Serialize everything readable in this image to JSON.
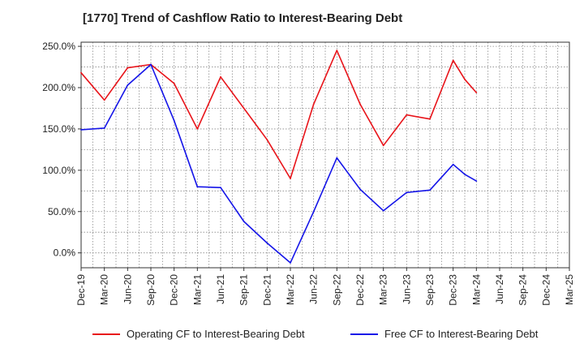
{
  "chart_data": {
    "type": "line",
    "title": "[1770]  Trend of Cashflow Ratio to Interest-Bearing Debt",
    "xlabel": "",
    "ylabel": "",
    "categories": [
      "Dec-19",
      "Mar-20",
      "Jun-20",
      "Sep-20",
      "Dec-20",
      "Mar-21",
      "Jun-21",
      "Sep-21",
      "Dec-21",
      "Mar-22",
      "Jun-22",
      "Sep-22",
      "Dec-22",
      "Mar-23",
      "Jun-23",
      "Sep-23",
      "Dec-23",
      "Mar-24",
      "Jun-24",
      "Sep-24",
      "Dec-24",
      "Mar-25"
    ],
    "x": [
      0,
      0.5,
      1,
      1.5,
      2,
      2.5,
      3,
      3.5,
      4,
      4.5,
      5,
      5.5,
      6,
      6.5,
      7,
      7.5,
      8,
      8.5,
      9,
      9.5,
      10,
      10.5,
      11,
      11.5,
      12,
      12.5,
      13,
      13.5,
      14,
      14.5,
      15,
      15.5,
      16,
      16.5,
      17,
      17.5,
      18,
      18.5,
      19,
      19.5,
      20,
      20.5,
      21
    ],
    "ylim": [
      -18,
      255
    ],
    "yticks": [
      0,
      50,
      100,
      150,
      200,
      250
    ],
    "ytick_labels": [
      "0.0%",
      "50.0%",
      "100.0%",
      "150.0%",
      "200.0%",
      "250.0%"
    ],
    "grid": true,
    "legend_position": "bottom",
    "series": [
      {
        "name": "Operating CF to Interest-Bearing Debt",
        "color": "#e8141a",
        "points": [
          [
            0,
            218
          ],
          [
            1,
            185
          ],
          [
            2,
            224
          ],
          [
            3,
            228
          ],
          [
            4,
            205
          ],
          [
            5,
            150
          ],
          [
            6,
            213
          ],
          [
            7,
            175
          ],
          [
            8,
            137
          ],
          [
            9,
            90
          ],
          [
            10,
            180
          ],
          [
            11,
            245
          ],
          [
            12,
            180
          ],
          [
            13,
            130
          ],
          [
            14,
            167
          ],
          [
            15,
            162
          ],
          [
            16,
            233
          ],
          [
            16.5,
            210
          ],
          [
            17,
            194
          ]
        ]
      },
      {
        "name": "Free CF to Interest-Bearing Debt",
        "color": "#1515e8",
        "points": [
          [
            0,
            149
          ],
          [
            1,
            151
          ],
          [
            2,
            203
          ],
          [
            3,
            228
          ],
          [
            4,
            160
          ],
          [
            5,
            80
          ],
          [
            6,
            79
          ],
          [
            7,
            38
          ],
          [
            8,
            12
          ],
          [
            9,
            -12
          ],
          [
            10,
            50
          ],
          [
            11,
            115
          ],
          [
            12,
            77
          ],
          [
            13,
            51
          ],
          [
            14,
            73
          ],
          [
            15,
            76
          ],
          [
            16,
            107
          ],
          [
            16.5,
            95
          ],
          [
            17,
            87
          ]
        ]
      }
    ]
  }
}
